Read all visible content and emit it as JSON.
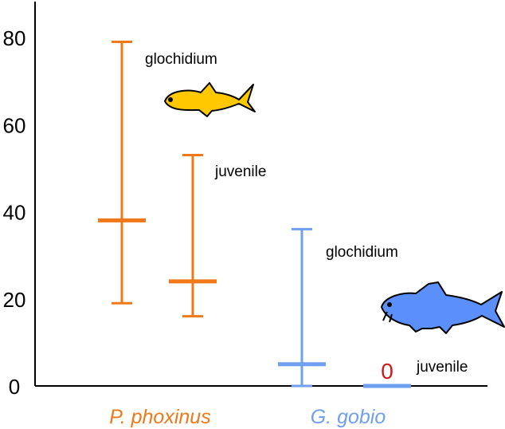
{
  "colors": {
    "phoxinus": "#f07818",
    "gobio": "#6e9ff0",
    "zero": "#cc1a1a",
    "fish_yellow": "#ffc800",
    "fish_blue": "#5b8ff9",
    "axis": "#000000"
  },
  "chart_data": {
    "type": "bar",
    "subtype": "range-with-mean",
    "categories": [
      "P. phoxinus",
      "G. gobio"
    ],
    "ylim": [
      0,
      85
    ],
    "yticks": [
      0,
      20,
      40,
      60,
      80
    ],
    "ytick_labels": [
      "0",
      "20",
      "40",
      "60",
      "80"
    ],
    "series": [
      {
        "category": "P. phoxinus",
        "label": "glochidium",
        "color": "#f07818",
        "low": 19,
        "mean": 38,
        "high": 79
      },
      {
        "category": "P. phoxinus",
        "label": "juvenile",
        "color": "#f07818",
        "low": 16,
        "mean": 24,
        "high": 53
      },
      {
        "category": "G. gobio",
        "label": "glochidium",
        "color": "#6e9ff0",
        "low": 0,
        "mean": 5,
        "high": 36
      },
      {
        "category": "G. gobio",
        "label": "juvenile",
        "color": "#6e9ff0",
        "low": 0,
        "mean": 0,
        "high": 0,
        "value_label": "0"
      }
    ],
    "fish_icons": [
      "yellow-minnow-icon",
      "blue-gudgeon-icon"
    ]
  }
}
